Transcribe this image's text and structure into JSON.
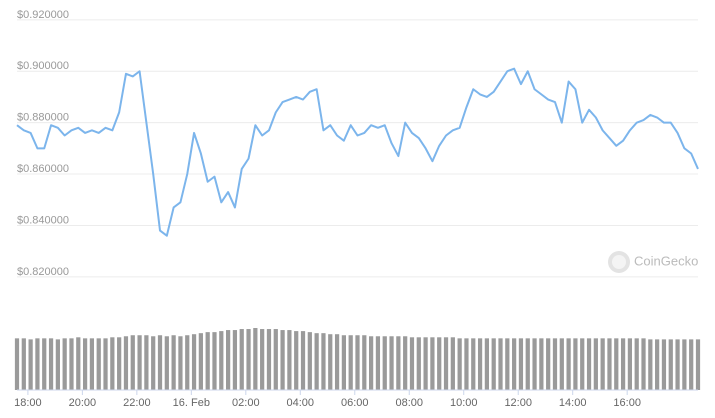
{
  "chart_data": {
    "type": "line",
    "x": [
      17.6,
      17.85,
      18.1,
      18.35,
      18.6,
      18.85,
      19.1,
      19.35,
      19.6,
      19.85,
      20.1,
      20.35,
      20.6,
      20.85,
      21.1,
      21.35,
      21.6,
      21.85,
      22.1,
      22.35,
      22.6,
      22.85,
      23.1,
      23.35,
      23.6,
      23.85,
      24.1,
      24.35,
      24.6,
      24.85,
      25.1,
      25.35,
      25.6,
      25.85,
      26.1,
      26.35,
      26.6,
      26.85,
      27.1,
      27.35,
      27.6,
      27.85,
      28.1,
      28.35,
      28.6,
      28.85,
      29.1,
      29.35,
      29.6,
      29.85,
      30.1,
      30.35,
      30.6,
      30.85,
      31.1,
      31.35,
      31.6,
      31.85,
      32.1,
      32.35,
      32.6,
      32.85,
      33.1,
      33.35,
      33.6,
      33.85,
      34.1,
      34.35,
      34.6,
      34.85,
      35.1,
      35.35,
      35.6,
      35.85,
      36.1,
      36.35,
      36.6,
      36.85,
      37.1,
      37.35,
      37.6,
      37.85,
      38.1,
      38.35,
      38.6,
      38.85,
      39.1,
      39.35,
      39.6,
      39.85,
      40.1,
      40.35,
      40.6,
      40.85,
      41.1,
      41.35,
      41.6,
      41.85,
      42.1,
      42.35,
      42.6
    ],
    "values": [
      0.879,
      0.877,
      0.876,
      0.87,
      0.87,
      0.879,
      0.878,
      0.875,
      0.877,
      0.878,
      0.876,
      0.877,
      0.876,
      0.878,
      0.877,
      0.884,
      0.899,
      0.898,
      0.9,
      0.88,
      0.86,
      0.838,
      0.836,
      0.847,
      0.849,
      0.86,
      0.876,
      0.868,
      0.857,
      0.859,
      0.849,
      0.853,
      0.847,
      0.862,
      0.866,
      0.879,
      0.875,
      0.877,
      0.884,
      0.888,
      0.889,
      0.89,
      0.889,
      0.892,
      0.893,
      0.877,
      0.879,
      0.875,
      0.873,
      0.879,
      0.875,
      0.876,
      0.879,
      0.878,
      0.879,
      0.872,
      0.867,
      0.88,
      0.876,
      0.874,
      0.87,
      0.865,
      0.871,
      0.875,
      0.877,
      0.878,
      0.886,
      0.893,
      0.891,
      0.89,
      0.892,
      0.896,
      0.9,
      0.901,
      0.895,
      0.9,
      0.893,
      0.891,
      0.889,
      0.888,
      0.88,
      0.896,
      0.893,
      0.88,
      0.885,
      0.882,
      0.877,
      0.874,
      0.871,
      0.873,
      0.877,
      0.88,
      0.881,
      0.883,
      0.882,
      0.88,
      0.88,
      0.876,
      0.87,
      0.868,
      0.862
    ],
    "color": "#7cb5ec",
    "volume": {
      "type": "bar",
      "color": "#9a9a9a",
      "values": [
        50,
        50,
        49,
        50,
        50,
        50,
        49,
        50,
        50,
        51,
        50,
        50,
        50,
        50,
        51,
        51,
        52,
        53,
        53,
        53,
        52,
        53,
        52,
        53,
        52,
        53,
        54,
        55,
        56,
        56,
        57,
        58,
        58,
        59,
        59,
        60,
        59,
        59,
        59,
        58,
        58,
        57,
        57,
        56,
        55,
        55,
        54,
        54,
        53,
        53,
        53,
        53,
        52,
        52,
        52,
        52,
        52,
        52,
        51,
        51,
        51,
        51,
        51,
        51,
        51,
        50,
        50,
        50,
        50,
        50,
        50,
        50,
        50,
        50,
        50,
        50,
        50,
        50,
        50,
        50,
        50,
        50,
        50,
        50,
        50,
        50,
        50,
        50,
        50,
        50,
        50,
        50,
        50,
        49,
        49,
        49,
        49,
        49,
        49,
        49,
        49
      ]
    },
    "xlim": [
      17.6,
      42.6
    ],
    "xticks": [
      {
        "value": 18,
        "label": "18:00"
      },
      {
        "value": 20,
        "label": "20:00"
      },
      {
        "value": 22,
        "label": "22:00"
      },
      {
        "value": 24,
        "label": "16. Feb"
      },
      {
        "value": 26,
        "label": "02:00"
      },
      {
        "value": 28,
        "label": "04:00"
      },
      {
        "value": 30,
        "label": "06:00"
      },
      {
        "value": 32,
        "label": "08:00"
      },
      {
        "value": 34,
        "label": "10:00"
      },
      {
        "value": 36,
        "label": "12:00"
      },
      {
        "value": 38,
        "label": "14:00"
      },
      {
        "value": 40,
        "label": "16:00"
      }
    ],
    "ylim": [
      0.815,
      0.925
    ],
    "yticks": [
      {
        "value": 0.82,
        "label": "$0.820000"
      },
      {
        "value": 0.84,
        "label": "$0.840000"
      },
      {
        "value": 0.86,
        "label": "$0.860000"
      },
      {
        "value": 0.88,
        "label": "$0.880000"
      },
      {
        "value": 0.9,
        "label": "$0.900000"
      },
      {
        "value": 0.92,
        "label": "$0.920000"
      }
    ],
    "grid": true,
    "watermark": "CoinGecko"
  }
}
